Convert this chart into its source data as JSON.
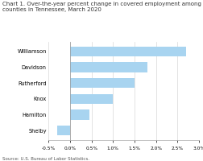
{
  "title_line1": "Chart 1. Over-the-year percent change in covered employment among the largest",
  "title_line2": "counties in Tennessee, March 2020",
  "categories": [
    "Williamson",
    "Davidson",
    "Rutherford",
    "Knox",
    "Hamilton",
    "Shelby"
  ],
  "values": [
    2.7,
    1.8,
    1.5,
    1.0,
    0.45,
    -0.3
  ],
  "bar_color": "#a8d4f0",
  "xlim": [
    -0.5,
    3.0
  ],
  "xticks": [
    -0.5,
    0.0,
    0.5,
    1.0,
    1.5,
    2.0,
    2.5,
    3.0
  ],
  "xtick_labels": [
    "-0.5%",
    "0.0%",
    "0.5%",
    "1.0%",
    "1.5%",
    "2.0%",
    "2.5%",
    "3.0%"
  ],
  "source_text": "Source: U.S. Bureau of Labor Statistics.",
  "title_fontsize": 5.0,
  "label_fontsize": 4.8,
  "tick_fontsize": 4.2,
  "source_fontsize": 4.0,
  "background_color": "#ffffff",
  "grid_color": "#d8d8d8"
}
